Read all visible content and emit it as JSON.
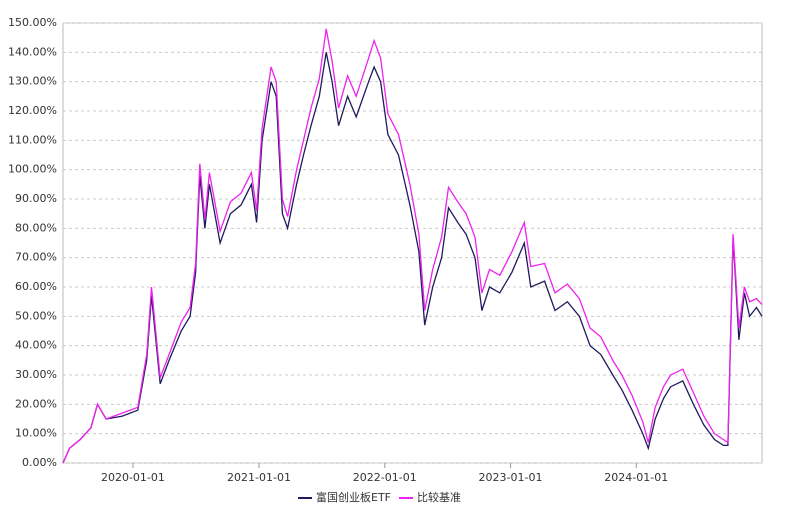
{
  "chart_data": {
    "type": "line",
    "x": [
      "2019-06-12",
      "2019-07-01",
      "2019-08-01",
      "2019-09-01",
      "2019-09-20",
      "2019-10-15",
      "2019-12-01",
      "2020-01-15",
      "2020-02-10",
      "2020-02-24",
      "2020-03-20",
      "2020-04-15",
      "2020-05-20",
      "2020-06-15",
      "2020-07-01",
      "2020-07-13",
      "2020-07-28",
      "2020-08-10",
      "2020-09-10",
      "2020-10-10",
      "2020-11-10",
      "2020-12-10",
      "2020-12-25",
      "2021-01-10",
      "2021-02-05",
      "2021-02-20",
      "2021-03-10",
      "2021-03-25",
      "2021-04-20",
      "2021-05-10",
      "2021-06-01",
      "2021-06-25",
      "2021-07-15",
      "2021-08-01",
      "2021-08-20",
      "2021-09-15",
      "2021-10-10",
      "2021-11-15",
      "2021-12-01",
      "2021-12-20",
      "2022-01-10",
      "2022-02-10",
      "2022-03-15",
      "2022-04-10",
      "2022-04-27",
      "2022-05-20",
      "2022-06-15",
      "2022-07-05",
      "2022-08-01",
      "2022-08-25",
      "2022-09-20",
      "2022-10-10",
      "2022-11-01",
      "2022-12-01",
      "2023-01-05",
      "2023-02-10",
      "2023-03-01",
      "2023-04-10",
      "2023-05-10",
      "2023-06-15",
      "2023-07-20",
      "2023-08-20",
      "2023-09-20",
      "2023-10-25",
      "2023-11-20",
      "2023-12-20",
      "2024-01-20",
      "2024-02-05",
      "2024-02-25",
      "2024-03-20",
      "2024-04-10",
      "2024-05-15",
      "2024-06-15",
      "2024-07-15",
      "2024-08-15",
      "2024-09-10",
      "2024-09-23",
      "2024-10-08",
      "2024-10-25",
      "2024-11-10",
      "2024-11-25",
      "2024-12-15",
      "2024-12-31"
    ],
    "series": [
      {
        "name": "富国创业板ETF",
        "color": "#1f1a5e",
        "values": [
          0,
          5,
          8,
          12,
          20,
          15,
          16,
          18,
          35,
          57,
          27,
          35,
          45,
          50,
          65,
          98,
          80,
          95,
          75,
          85,
          88,
          95,
          82,
          110,
          130,
          125,
          85,
          80,
          95,
          105,
          115,
          125,
          140,
          130,
          115,
          125,
          118,
          130,
          135,
          130,
          112,
          105,
          88,
          72,
          47,
          60,
          70,
          87,
          82,
          78,
          70,
          52,
          60,
          58,
          65,
          75,
          60,
          62,
          52,
          55,
          50,
          40,
          37,
          30,
          25,
          18,
          10,
          5,
          15,
          22,
          26,
          28,
          20,
          13,
          8,
          6,
          6,
          77,
          42,
          58,
          50,
          53,
          50
        ]
      },
      {
        "name": "比较基准",
        "color": "#ee22ee",
        "values": [
          0,
          5,
          8,
          12,
          20,
          15,
          17,
          19,
          37,
          60,
          29,
          37,
          48,
          53,
          68,
          102,
          83,
          99,
          79,
          89,
          92,
          99,
          86,
          114,
          135,
          130,
          90,
          84,
          100,
          110,
          121,
          131,
          148,
          137,
          121,
          132,
          125,
          138,
          144,
          138,
          119,
          112,
          95,
          78,
          52,
          66,
          77,
          94,
          89,
          85,
          77,
          58,
          66,
          64,
          72,
          82,
          67,
          68,
          58,
          61,
          56,
          46,
          43,
          35,
          30,
          23,
          14,
          7,
          19,
          26,
          30,
          32,
          24,
          16,
          10,
          8,
          7,
          78,
          46,
          60,
          55,
          56,
          54
        ]
      }
    ],
    "xlim": [
      "2019-06-12",
      "2024-12-31"
    ],
    "xticks": [
      "2020-01-01",
      "2021-01-01",
      "2022-01-01",
      "2023-01-01",
      "2024-01-01"
    ],
    "ylim": [
      0,
      150
    ],
    "yticks": [
      {
        "value": 0,
        "label": "0.00%"
      },
      {
        "value": 10,
        "label": "10.00%"
      },
      {
        "value": 20,
        "label": "20.00%"
      },
      {
        "value": 30,
        "label": "30.00%"
      },
      {
        "value": 40,
        "label": "40.00%"
      },
      {
        "value": 50,
        "label": "50.00%"
      },
      {
        "value": 60,
        "label": "60.00%"
      },
      {
        "value": 70,
        "label": "70.00%"
      },
      {
        "value": 80,
        "label": "80.00%"
      },
      {
        "value": 90,
        "label": "90.00%"
      },
      {
        "value": 100,
        "label": "100.00%"
      },
      {
        "value": 110,
        "label": "110.00%"
      },
      {
        "value": 120,
        "label": "120.00%"
      },
      {
        "value": 130,
        "label": "130.00%"
      },
      {
        "value": 140,
        "label": "140.00%"
      },
      {
        "value": 150,
        "label": "150.00%"
      }
    ],
    "grid": true,
    "legend": "bottom"
  }
}
